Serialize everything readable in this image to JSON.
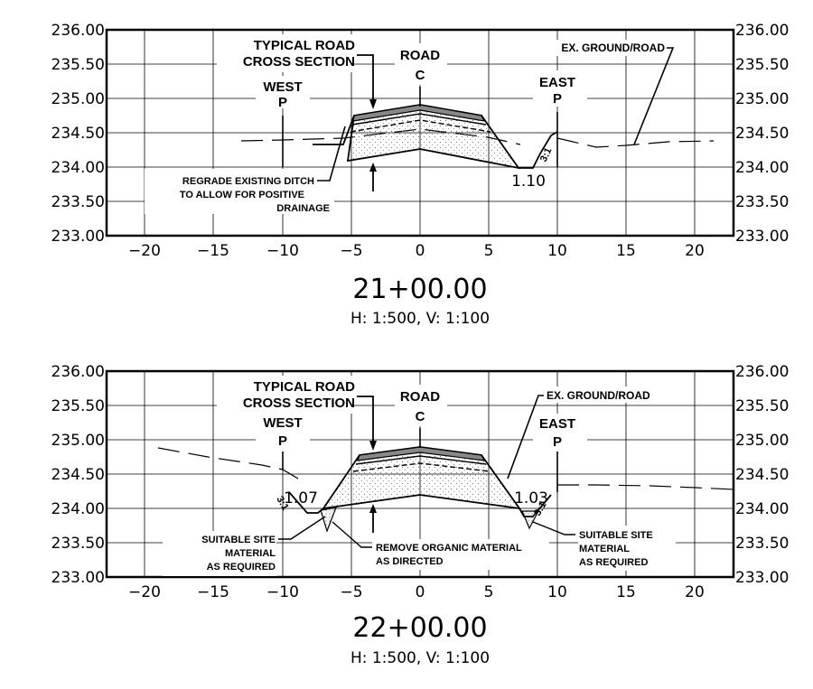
{
  "sections": [
    {
      "station": "21+00.00",
      "scale_text": "H: 1:500, V: 1:100",
      "x_ticks": [
        "−20",
        "−15",
        "−10",
        "−5",
        "0",
        "5",
        "10",
        "15",
        "20"
      ],
      "y_ticks": [
        "236.00",
        "235.50",
        "235.00",
        "234.50",
        "234.00",
        "233.50",
        "233.00"
      ],
      "labels": {
        "road_line1": "TYPICAL ROAD",
        "road_line2": "CROSS SECTION",
        "road": "ROAD",
        "cl": "C",
        "west": "WEST",
        "west_pl": "P",
        "east": "EAST",
        "east_pl": "P",
        "ex_ground": "EX. GROUND/ROAD",
        "regrade_1": "REGRADE EXISTING DITCH",
        "regrade_2": "TO ALLOW FOR POSITIVE",
        "regrade_3": "DRAINAGE",
        "east_depth": "1.10",
        "east_slope": "3:1"
      }
    },
    {
      "station": "22+00.00",
      "scale_text": "H: 1:500, V: 1:100",
      "x_ticks": [
        "−20",
        "−15",
        "−10",
        "−5",
        "0",
        "5",
        "10",
        "15",
        "20"
      ],
      "y_ticks": [
        "236.00",
        "235.50",
        "235.00",
        "234.50",
        "234.00",
        "233.50",
        "233.00"
      ],
      "labels": {
        "road_line1": "TYPICAL ROAD",
        "road_line2": "CROSS SECTION",
        "road": "ROAD",
        "cl": "C",
        "west": "WEST",
        "west_pl": "P",
        "east": "EAST",
        "east_pl": "P",
        "ex_ground": "EX. GROUND/ROAD",
        "west_depth": "1.07",
        "east_depth": "1.03",
        "west_slope": "3:1",
        "east_slope": "3:1",
        "suit_left_1": "SUITABLE SITE",
        "suit_left_2": "MATERIAL",
        "suit_left_3": "AS REQUIRED",
        "remove_1": "REMOVE ORGANIC MATERIAL",
        "remove_2": "AS DIRECTED",
        "suit_right_1": "SUITABLE SITE",
        "suit_right_2": "MATERIAL",
        "suit_right_3": "AS REQUIRED"
      }
    }
  ]
}
